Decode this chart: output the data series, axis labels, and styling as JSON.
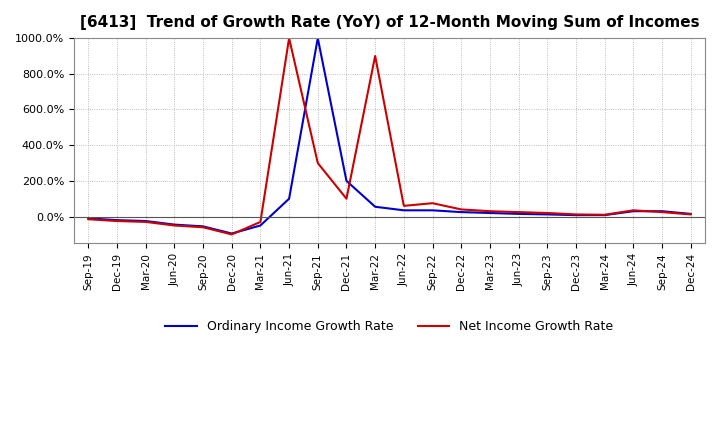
{
  "title": "[6413]  Trend of Growth Rate (YoY) of 12-Month Moving Sum of Incomes",
  "title_fontsize": 11,
  "background_color": "#ffffff",
  "plot_bg_color": "#ffffff",
  "grid_color": "#aaaaaa",
  "x_labels": [
    "Sep-19",
    "Dec-19",
    "Mar-20",
    "Jun-20",
    "Sep-20",
    "Dec-20",
    "Mar-21",
    "Jun-21",
    "Sep-21",
    "Dec-21",
    "Mar-22",
    "Jun-22",
    "Sep-22",
    "Dec-22",
    "Mar-23",
    "Jun-23",
    "Sep-23",
    "Dec-23",
    "Mar-24",
    "Jun-24",
    "Sep-24",
    "Dec-24"
  ],
  "ordinary_income": [
    -10,
    -20,
    -25,
    -45,
    -55,
    -95,
    -50,
    100,
    1000,
    200,
    55,
    35,
    35,
    25,
    20,
    15,
    12,
    8,
    8,
    30,
    30,
    15
  ],
  "net_income": [
    -15,
    -25,
    -30,
    -50,
    -60,
    -100,
    -30,
    1000,
    300,
    100,
    900,
    60,
    75,
    40,
    30,
    25,
    20,
    12,
    10,
    35,
    25,
    12
  ],
  "line_color_ordinary": "#0000cc",
  "line_color_net": "#cc0000",
  "line_width": 1.5,
  "legend_ordinary": "Ordinary Income Growth Rate",
  "legend_net": "Net Income Growth Rate",
  "ylim_min": -150,
  "ylim_max": 1000
}
